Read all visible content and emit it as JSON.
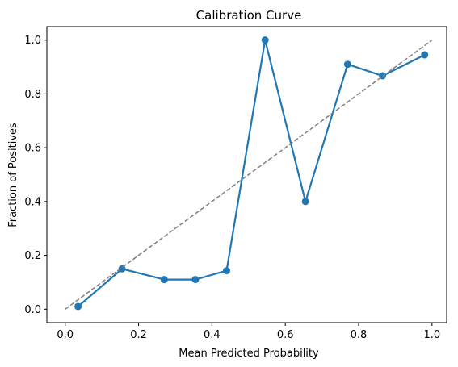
{
  "chart_data": {
    "type": "line",
    "title": "Calibration Curve",
    "xlabel": "Mean Predicted Probability",
    "ylabel": "Fraction of Positives",
    "xlim": [
      -0.05,
      1.04
    ],
    "ylim": [
      -0.05,
      1.05
    ],
    "xticks": [
      0.0,
      0.2,
      0.4,
      0.6,
      0.8,
      1.0
    ],
    "yticks": [
      0.0,
      0.2,
      0.4,
      0.6,
      0.8,
      1.0
    ],
    "tick_labels_x": [
      "0.0",
      "0.2",
      "0.4",
      "0.6",
      "0.8",
      "1.0"
    ],
    "tick_labels_y": [
      "0.0",
      "0.2",
      "0.4",
      "0.6",
      "0.8",
      "1.0"
    ],
    "grid": false,
    "series": [
      {
        "style": "line-with-markers",
        "color": "#1f77b4",
        "x": [
          0.035,
          0.155,
          0.27,
          0.355,
          0.44,
          0.545,
          0.655,
          0.77,
          0.865,
          0.98
        ],
        "y": [
          0.01,
          0.15,
          0.11,
          0.11,
          0.143,
          1.0,
          0.4,
          0.91,
          0.867,
          0.945
        ]
      },
      {
        "style": "dashed",
        "color": "#7f7f7f",
        "x": [
          0.0,
          1.0
        ],
        "y": [
          0.0,
          1.0
        ]
      }
    ]
  }
}
